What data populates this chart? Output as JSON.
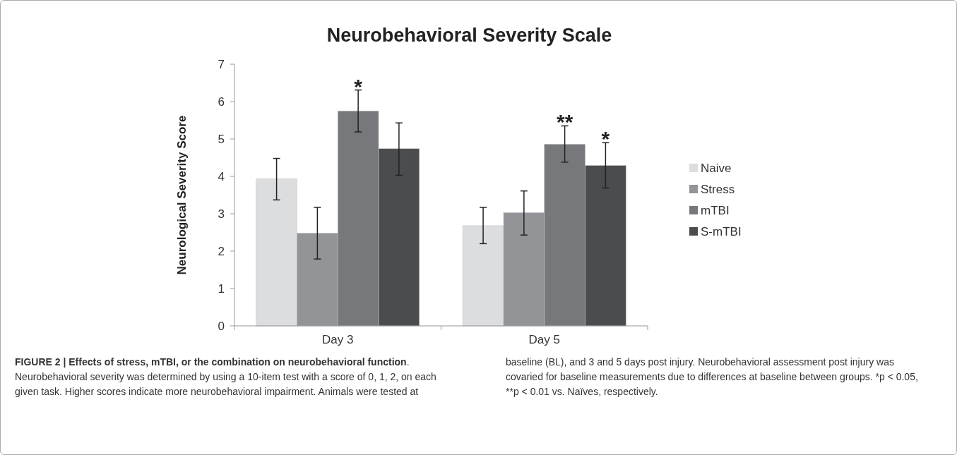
{
  "chart_data": {
    "type": "bar",
    "title": "Neurobehavioral Severity Scale",
    "ylabel": "Neurological Severity Score",
    "categories": [
      "Day 3",
      "Day 5"
    ],
    "series": [
      {
        "name": "Naive",
        "color": "#dcdddf",
        "values": [
          3.93,
          2.68
        ],
        "errors": [
          [
            3.37,
            4.48
          ],
          [
            2.2,
            3.17
          ]
        ]
      },
      {
        "name": "Stress",
        "color": "#939497",
        "values": [
          2.48,
          3.03
        ],
        "errors": [
          [
            1.79,
            3.17
          ],
          [
            2.43,
            3.61
          ]
        ]
      },
      {
        "name": "mTBI",
        "color": "#77787c",
        "values": [
          5.75,
          4.86
        ],
        "errors": [
          [
            5.19,
            6.31
          ],
          [
            4.38,
            5.35
          ]
        ]
      },
      {
        "name": "S-mTBI",
        "color": "#4b4c4e",
        "values": [
          4.74,
          4.29
        ],
        "errors": [
          [
            4.03,
            5.43
          ],
          [
            3.69,
            4.9
          ]
        ]
      }
    ],
    "ylim": [
      0,
      7
    ],
    "yticks": [
      0,
      1,
      2,
      3,
      4,
      5,
      6,
      7
    ],
    "grid": false,
    "legend": "right",
    "annotations": [
      {
        "text": "*",
        "x": "Day 3",
        "y": 5.75
      },
      {
        "text": "**",
        "x": "Day 5",
        "y": 4.86
      },
      {
        "text": "*",
        "x": "Day 5",
        "y": 4.29
      },
      "FIGURE 2 | Effects of stress, mTBI, or the combination on neurobehavioral function",
      ". Neurobehavioral severity was determined by using a 10-item test with a score of 0, 1, 2, on each given task. Higher scores indicate more neurobehavioral impairment. Animals were tested at baseline (BL), and 3 and 5 days post injury. Neurobehavioral assessment post injury was covaried for baseline measurements due to differences at baseline between groups. *p < 0.05, **p < 0.01 vs. Naïves, respectively."
    ]
  }
}
